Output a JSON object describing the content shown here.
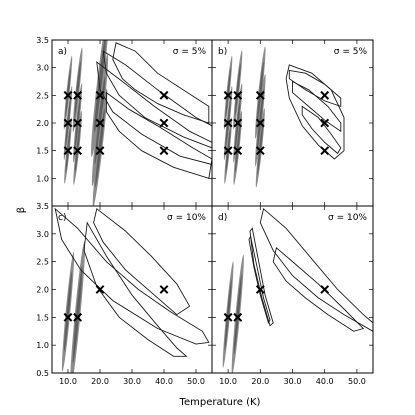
{
  "chart_data": [
    {
      "type": "scatter",
      "panel": "a)",
      "annotation": "σ = 5%",
      "points": [
        {
          "x": 10,
          "y": 1.5
        },
        {
          "x": 10,
          "y": 2.0
        },
        {
          "x": 10,
          "y": 2.5
        },
        {
          "x": 13,
          "y": 1.5
        },
        {
          "x": 13,
          "y": 2.0
        },
        {
          "x": 13,
          "y": 2.5
        },
        {
          "x": 20,
          "y": 1.5
        },
        {
          "x": 20,
          "y": 2.0
        },
        {
          "x": 20,
          "y": 2.5
        },
        {
          "x": 40,
          "y": 1.5
        },
        {
          "x": 40,
          "y": 2.0
        },
        {
          "x": 40,
          "y": 2.5
        }
      ],
      "xlim": [
        5,
        55
      ],
      "ylim": [
        0.5,
        3.5
      ]
    },
    {
      "type": "scatter",
      "panel": "b)",
      "annotation": "σ = 5%",
      "points": [
        {
          "x": 10,
          "y": 1.5
        },
        {
          "x": 10,
          "y": 2.0
        },
        {
          "x": 10,
          "y": 2.5
        },
        {
          "x": 13,
          "y": 1.5
        },
        {
          "x": 13,
          "y": 2.0
        },
        {
          "x": 13,
          "y": 2.5
        },
        {
          "x": 20,
          "y": 1.5
        },
        {
          "x": 20,
          "y": 2.0
        },
        {
          "x": 20,
          "y": 2.5
        },
        {
          "x": 40,
          "y": 1.5
        },
        {
          "x": 40,
          "y": 2.0
        },
        {
          "x": 40,
          "y": 2.5
        }
      ],
      "xlim": [
        5,
        55
      ],
      "ylim": [
        0.5,
        3.5
      ]
    },
    {
      "type": "scatter",
      "panel": "c)",
      "annotation": "σ = 10%",
      "points": [
        {
          "x": 10,
          "y": 1.5
        },
        {
          "x": 13,
          "y": 1.5
        },
        {
          "x": 20,
          "y": 2.0
        },
        {
          "x": 40,
          "y": 2.0
        }
      ],
      "xlim": [
        5,
        55
      ],
      "ylim": [
        0.5,
        3.5
      ]
    },
    {
      "type": "scatter",
      "panel": "d)",
      "annotation": "σ = 10%",
      "points": [
        {
          "x": 10,
          "y": 1.5
        },
        {
          "x": 13,
          "y": 1.5
        },
        {
          "x": 20,
          "y": 2.0
        },
        {
          "x": 40,
          "y": 2.0
        }
      ],
      "xlim": [
        5,
        55
      ],
      "ylim": [
        0.5,
        3.5
      ]
    }
  ],
  "axes": {
    "xlabel": "Temperature (K)",
    "ylabel": "β",
    "xticks": [
      "10.0",
      "20.0",
      "30.0",
      "40.0",
      "50.0"
    ],
    "yticks": [
      "0.5",
      "1.0",
      "1.5",
      "2.0",
      "2.5",
      "3.0",
      "3.5"
    ],
    "yticks_upper": [
      "1.0",
      "1.5",
      "2.0",
      "2.5",
      "3.0",
      "3.5"
    ]
  }
}
